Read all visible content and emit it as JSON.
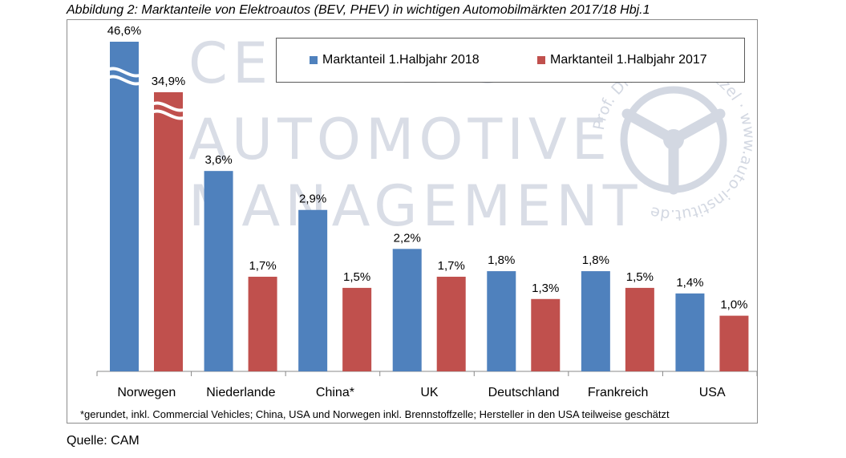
{
  "caption": "Abbildung 2: Marktanteile von Elektroautos (BEV, PHEV) in wichtigen Automobilmärkten 2017/18 Hbj.1",
  "watermark": {
    "lines": [
      "CENTER OF",
      "AUTOMOTIVE",
      "MANAGEMENT"
    ],
    "seal_text": "Prof. Dr. Stefan Bratzel · www.auto-institut.de"
  },
  "colors": {
    "series_2018": "#4f81bd",
    "series_2017": "#c0504d"
  },
  "legend": {
    "series_2018": "Marktanteil 1.Halbjahr 2018",
    "series_2017": "Marktanteil 1.Halbjahr 2017"
  },
  "chart_data": {
    "type": "bar",
    "title": "Marktanteile von Elektroautos (BEV, PHEV) in wichtigen Automobilmärkten 2017/18 Hbj.1",
    "xlabel": "",
    "ylabel": "",
    "axis_break": true,
    "legend_position": "top-right",
    "categories": [
      "Norwegen",
      "Niederlande",
      "China*",
      "UK",
      "Deutschland",
      "Frankreich",
      "USA"
    ],
    "series": [
      {
        "name": "Marktanteil 1.Halbjahr 2018",
        "values": [
          46.6,
          3.6,
          2.9,
          2.2,
          1.8,
          1.8,
          1.4
        ],
        "labels": [
          "46,6%",
          "3,6%",
          "2,9%",
          "2,2%",
          "1,8%",
          "1,8%",
          "1,4%"
        ]
      },
      {
        "name": "Marktanteil 1.Halbjahr 2017",
        "values": [
          34.9,
          1.7,
          1.5,
          1.7,
          1.3,
          1.5,
          1.0
        ],
        "labels": [
          "34,9%",
          "1,7%",
          "1,5%",
          "1,7%",
          "1,3%",
          "1,5%",
          "1,0%"
        ]
      }
    ]
  },
  "footnote": "*gerundet, inkl. Commercial Vehicles;  China, USA und Norwegen inkl. Brennstoffzelle; Hersteller in den USA teilweise geschätzt",
  "source": "Quelle: CAM"
}
